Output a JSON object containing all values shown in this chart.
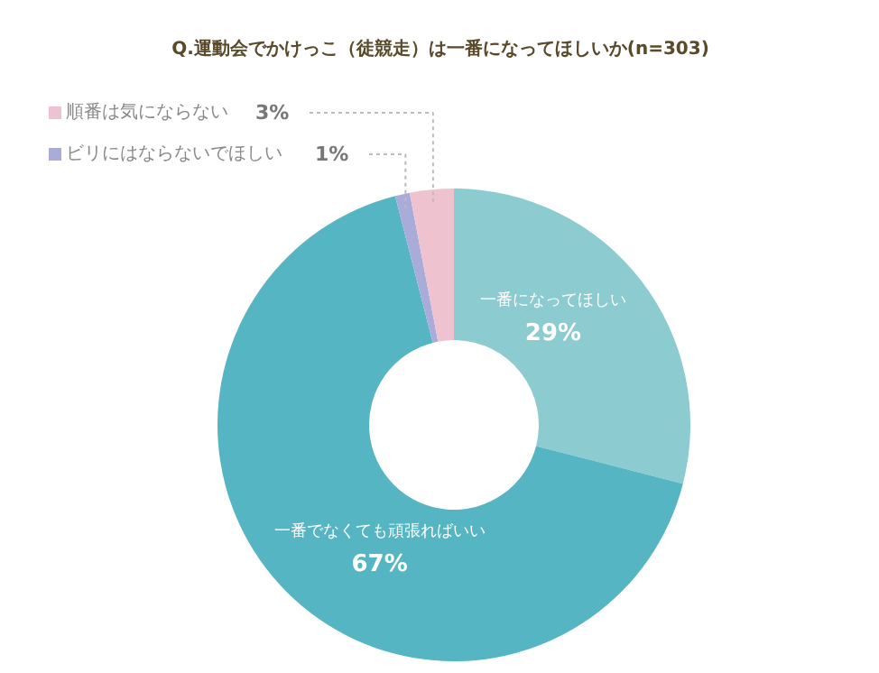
{
  "chart_data": {
    "type": "donut",
    "title": "Q.運動会でかけっこ（徒競走）は一番になってほしいか(n=303)",
    "categories": [
      "一番になってほしい",
      "一番でなくても頑張ればいい",
      "ビリにはならないでほしい",
      "順番は気にならない"
    ],
    "values": [
      29,
      67,
      1,
      3
    ],
    "value_labels": [
      "29%",
      "67%",
      "1%",
      "3%"
    ],
    "colors": [
      "#8ccbd0",
      "#55b5c3",
      "#a9acd9",
      "#efc2cf"
    ],
    "legend": "top left"
  }
}
